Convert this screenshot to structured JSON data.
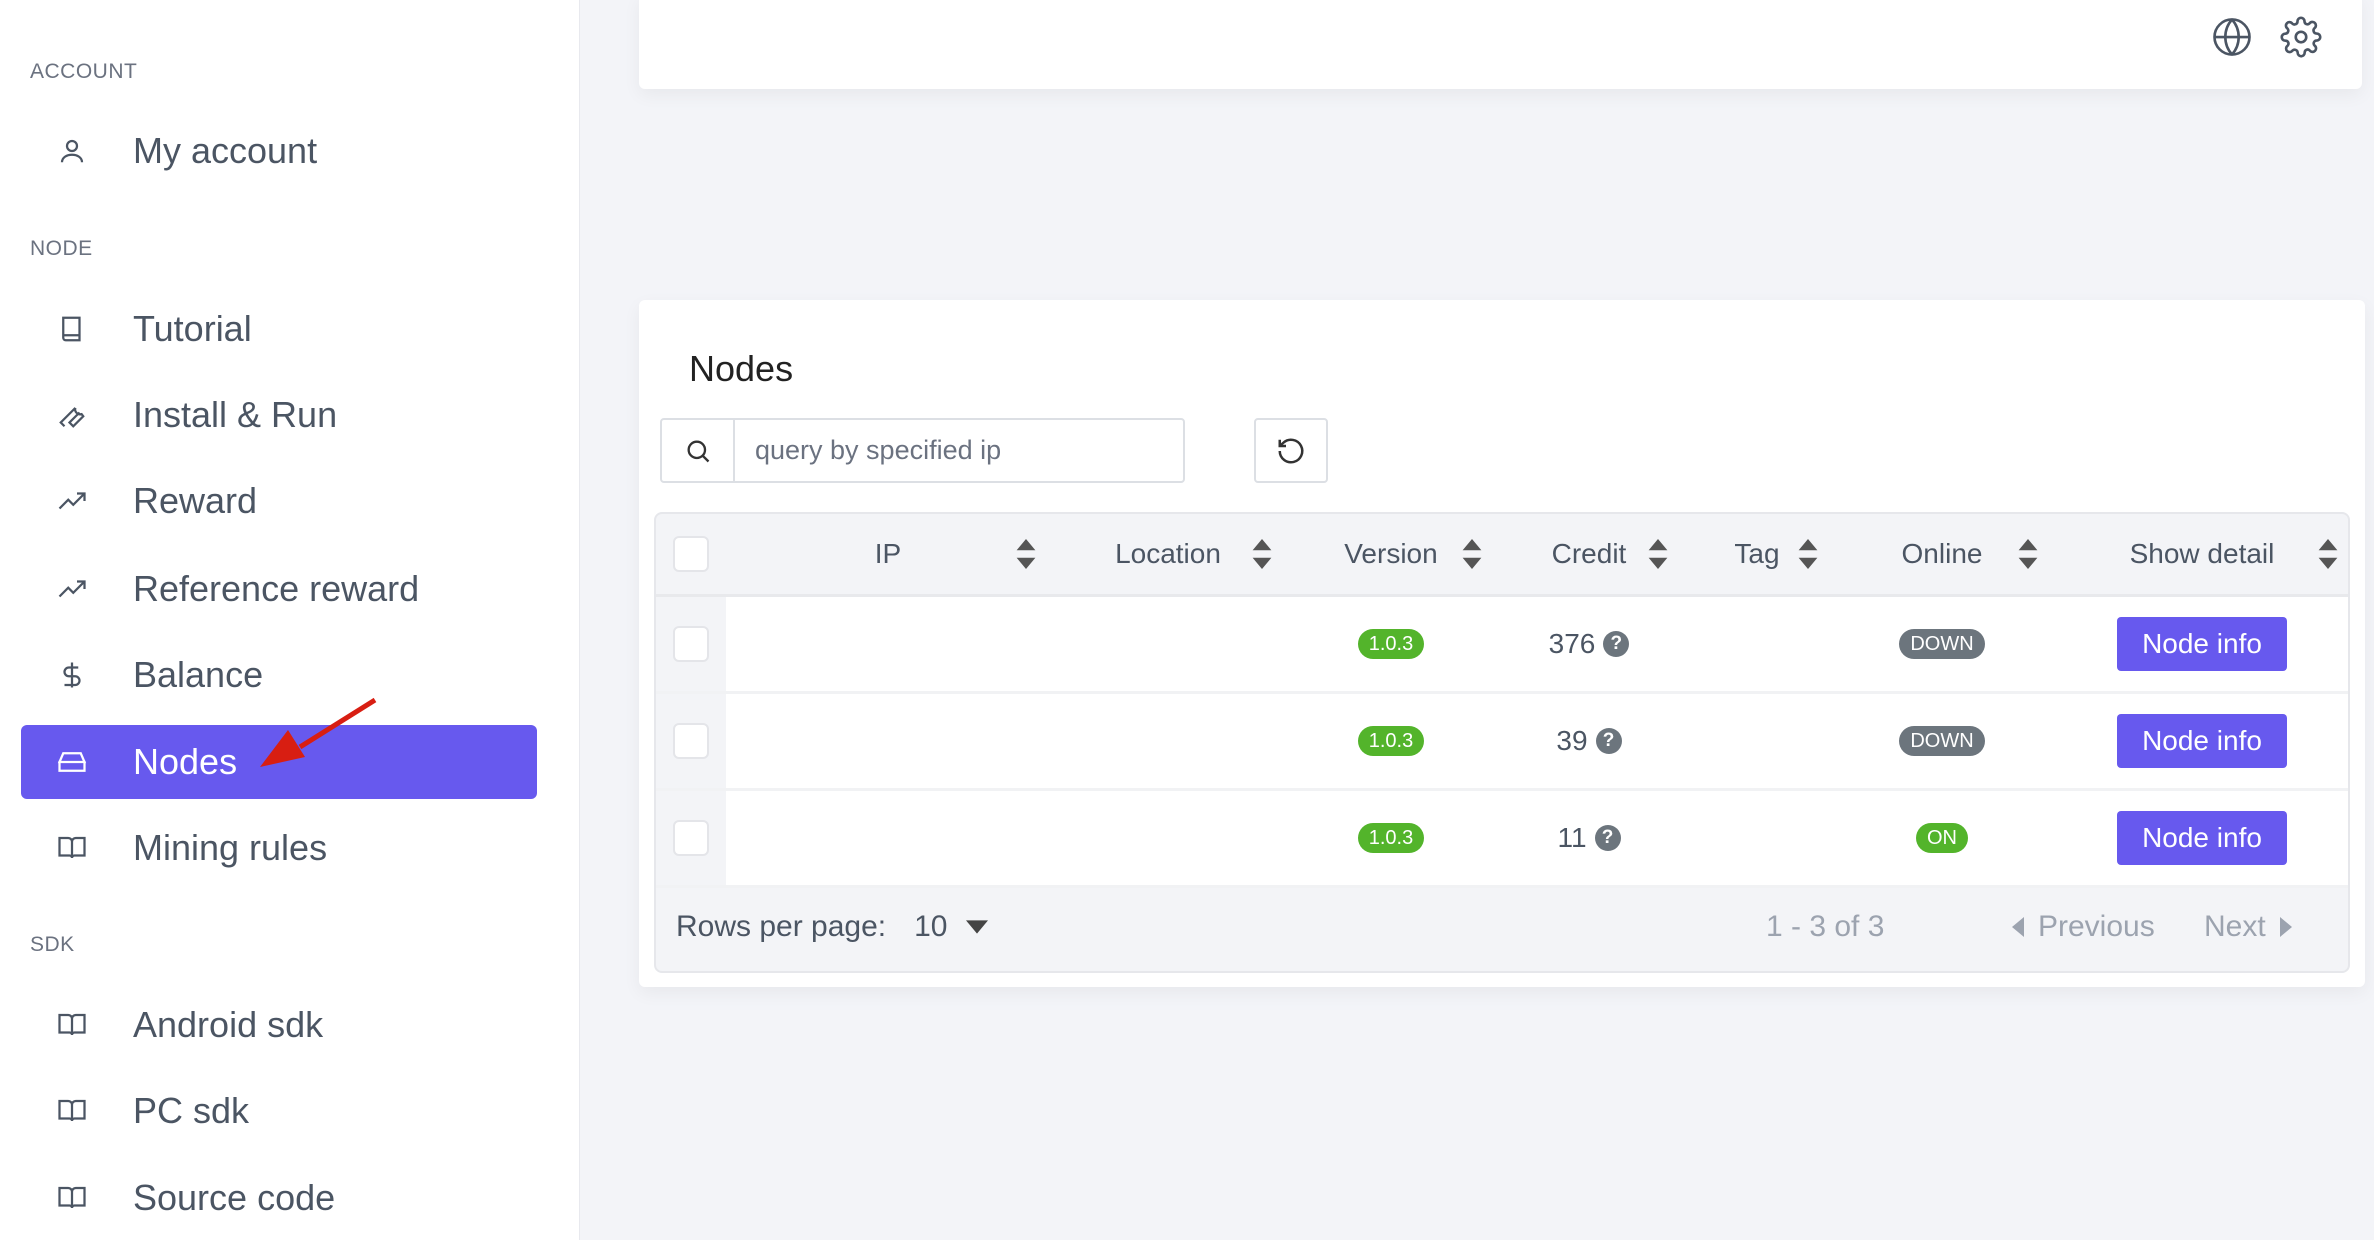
{
  "sidebar": {
    "sections": [
      {
        "label": "ACCOUNT",
        "items": [
          {
            "label": "My account",
            "icon": "user-icon"
          }
        ]
      },
      {
        "label": "NODE",
        "items": [
          {
            "label": "Tutorial",
            "icon": "book-icon"
          },
          {
            "label": "Install & Run",
            "icon": "wrench-icon"
          },
          {
            "label": "Reward",
            "icon": "trending-up-icon"
          },
          {
            "label": "Reference reward",
            "icon": "trending-up-icon"
          },
          {
            "label": "Balance",
            "icon": "dollar-icon"
          },
          {
            "label": "Nodes",
            "icon": "hard-drive-icon",
            "active": true
          },
          {
            "label": "Mining rules",
            "icon": "book-open-icon"
          }
        ]
      },
      {
        "label": "SDK",
        "items": [
          {
            "label": "Android sdk",
            "icon": "book-open-icon"
          },
          {
            "label": "PC sdk",
            "icon": "book-open-icon"
          },
          {
            "label": "Source code",
            "icon": "book-open-icon"
          }
        ]
      }
    ]
  },
  "header": {
    "icons": [
      "globe-icon",
      "gear-icon"
    ]
  },
  "nodes": {
    "title": "Nodes",
    "search_placeholder": "query by specified ip",
    "search_value": "",
    "columns": [
      "IP",
      "Location",
      "Version",
      "Credit",
      "Tag",
      "Online",
      "Show detail"
    ],
    "rows": [
      {
        "ip": "",
        "location": "",
        "version": "1.0.3",
        "credit": "376",
        "tag": "",
        "online": "DOWN",
        "action": "Node info"
      },
      {
        "ip": "",
        "location": "",
        "version": "1.0.3",
        "credit": "39",
        "tag": "",
        "online": "DOWN",
        "action": "Node info"
      },
      {
        "ip": "",
        "location": "",
        "version": "1.0.3",
        "credit": "11",
        "tag": "",
        "online": "ON",
        "action": "Node info"
      }
    ],
    "footer": {
      "rows_per_page_label": "Rows per page:",
      "rows_per_page": "10",
      "range": "1 - 3 of 3",
      "previous": "Previous",
      "next": "Next"
    }
  },
  "colors": {
    "primary": "#6759ee",
    "success": "#53b42b",
    "muted": "#6c757d",
    "annotation_arrow": "#d81e12"
  }
}
